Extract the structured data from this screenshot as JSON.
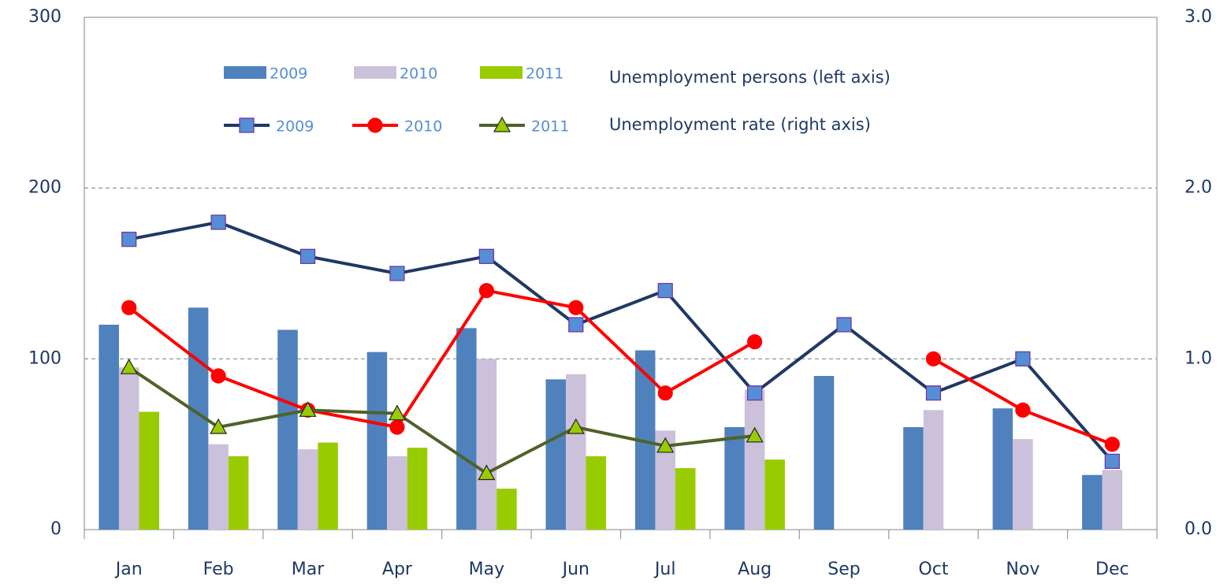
{
  "chart_data": {
    "type": "bar",
    "categories": [
      "Jan",
      "Feb",
      "Mar",
      "Apr",
      "May",
      "Jun",
      "Jul",
      "Aug",
      "Sep",
      "Oct",
      "Nov",
      "Dec"
    ],
    "legend_headers": [
      "Unemployment  persons (left axis)",
      "Unemployment  rate (right axis)"
    ],
    "series": [
      {
        "name": "2009",
        "type": "bar",
        "color": "#4f81bd",
        "values": [
          120,
          130,
          117,
          104,
          118,
          88,
          105,
          60,
          90,
          60,
          71,
          32
        ]
      },
      {
        "name": "2010",
        "type": "bar",
        "color": "#ccc1da",
        "values": [
          95,
          50,
          47,
          43,
          100,
          91,
          58,
          82,
          null,
          70,
          53,
          35
        ]
      },
      {
        "name": "2011",
        "type": "bar",
        "color": "#99cc00",
        "values": [
          69,
          43,
          51,
          48,
          24,
          43,
          36,
          41,
          null,
          null,
          null,
          null
        ]
      },
      {
        "name": "2009",
        "type": "line",
        "axis": "y2",
        "color": "#1f3864",
        "marker": "square",
        "marker_color": "#558ed5",
        "values": [
          1.7,
          1.8,
          1.6,
          1.5,
          1.6,
          1.2,
          1.4,
          0.8,
          1.2,
          0.8,
          1.0,
          0.4
        ]
      },
      {
        "name": "2010",
        "type": "line",
        "axis": "y2",
        "color": "#ff0000",
        "marker": "circle",
        "marker_color": "#ff0000",
        "values": [
          1.3,
          0.9,
          0.7,
          0.6,
          1.4,
          1.3,
          0.8,
          1.1,
          null,
          1.0,
          0.7,
          0.5
        ]
      },
      {
        "name": "2011",
        "type": "line",
        "axis": "y2",
        "color": "#4f6228",
        "marker": "triangle",
        "marker_color": "#99cc00",
        "values": [
          0.95,
          0.6,
          0.7,
          0.68,
          0.33,
          0.6,
          0.49,
          0.55,
          null,
          null,
          null,
          null
        ]
      }
    ],
    "ylim": [
      0,
      300
    ],
    "yticks": [
      0,
      100,
      200,
      300
    ],
    "y2lim": [
      0,
      3
    ],
    "y2ticks": [
      {
        "value": 0,
        "label": "0.0"
      },
      {
        "value": 1,
        "label": "1.0"
      },
      {
        "value": 2,
        "label": "2.0"
      },
      {
        "value": 3,
        "label": "3.0"
      }
    ],
    "grid": true
  }
}
